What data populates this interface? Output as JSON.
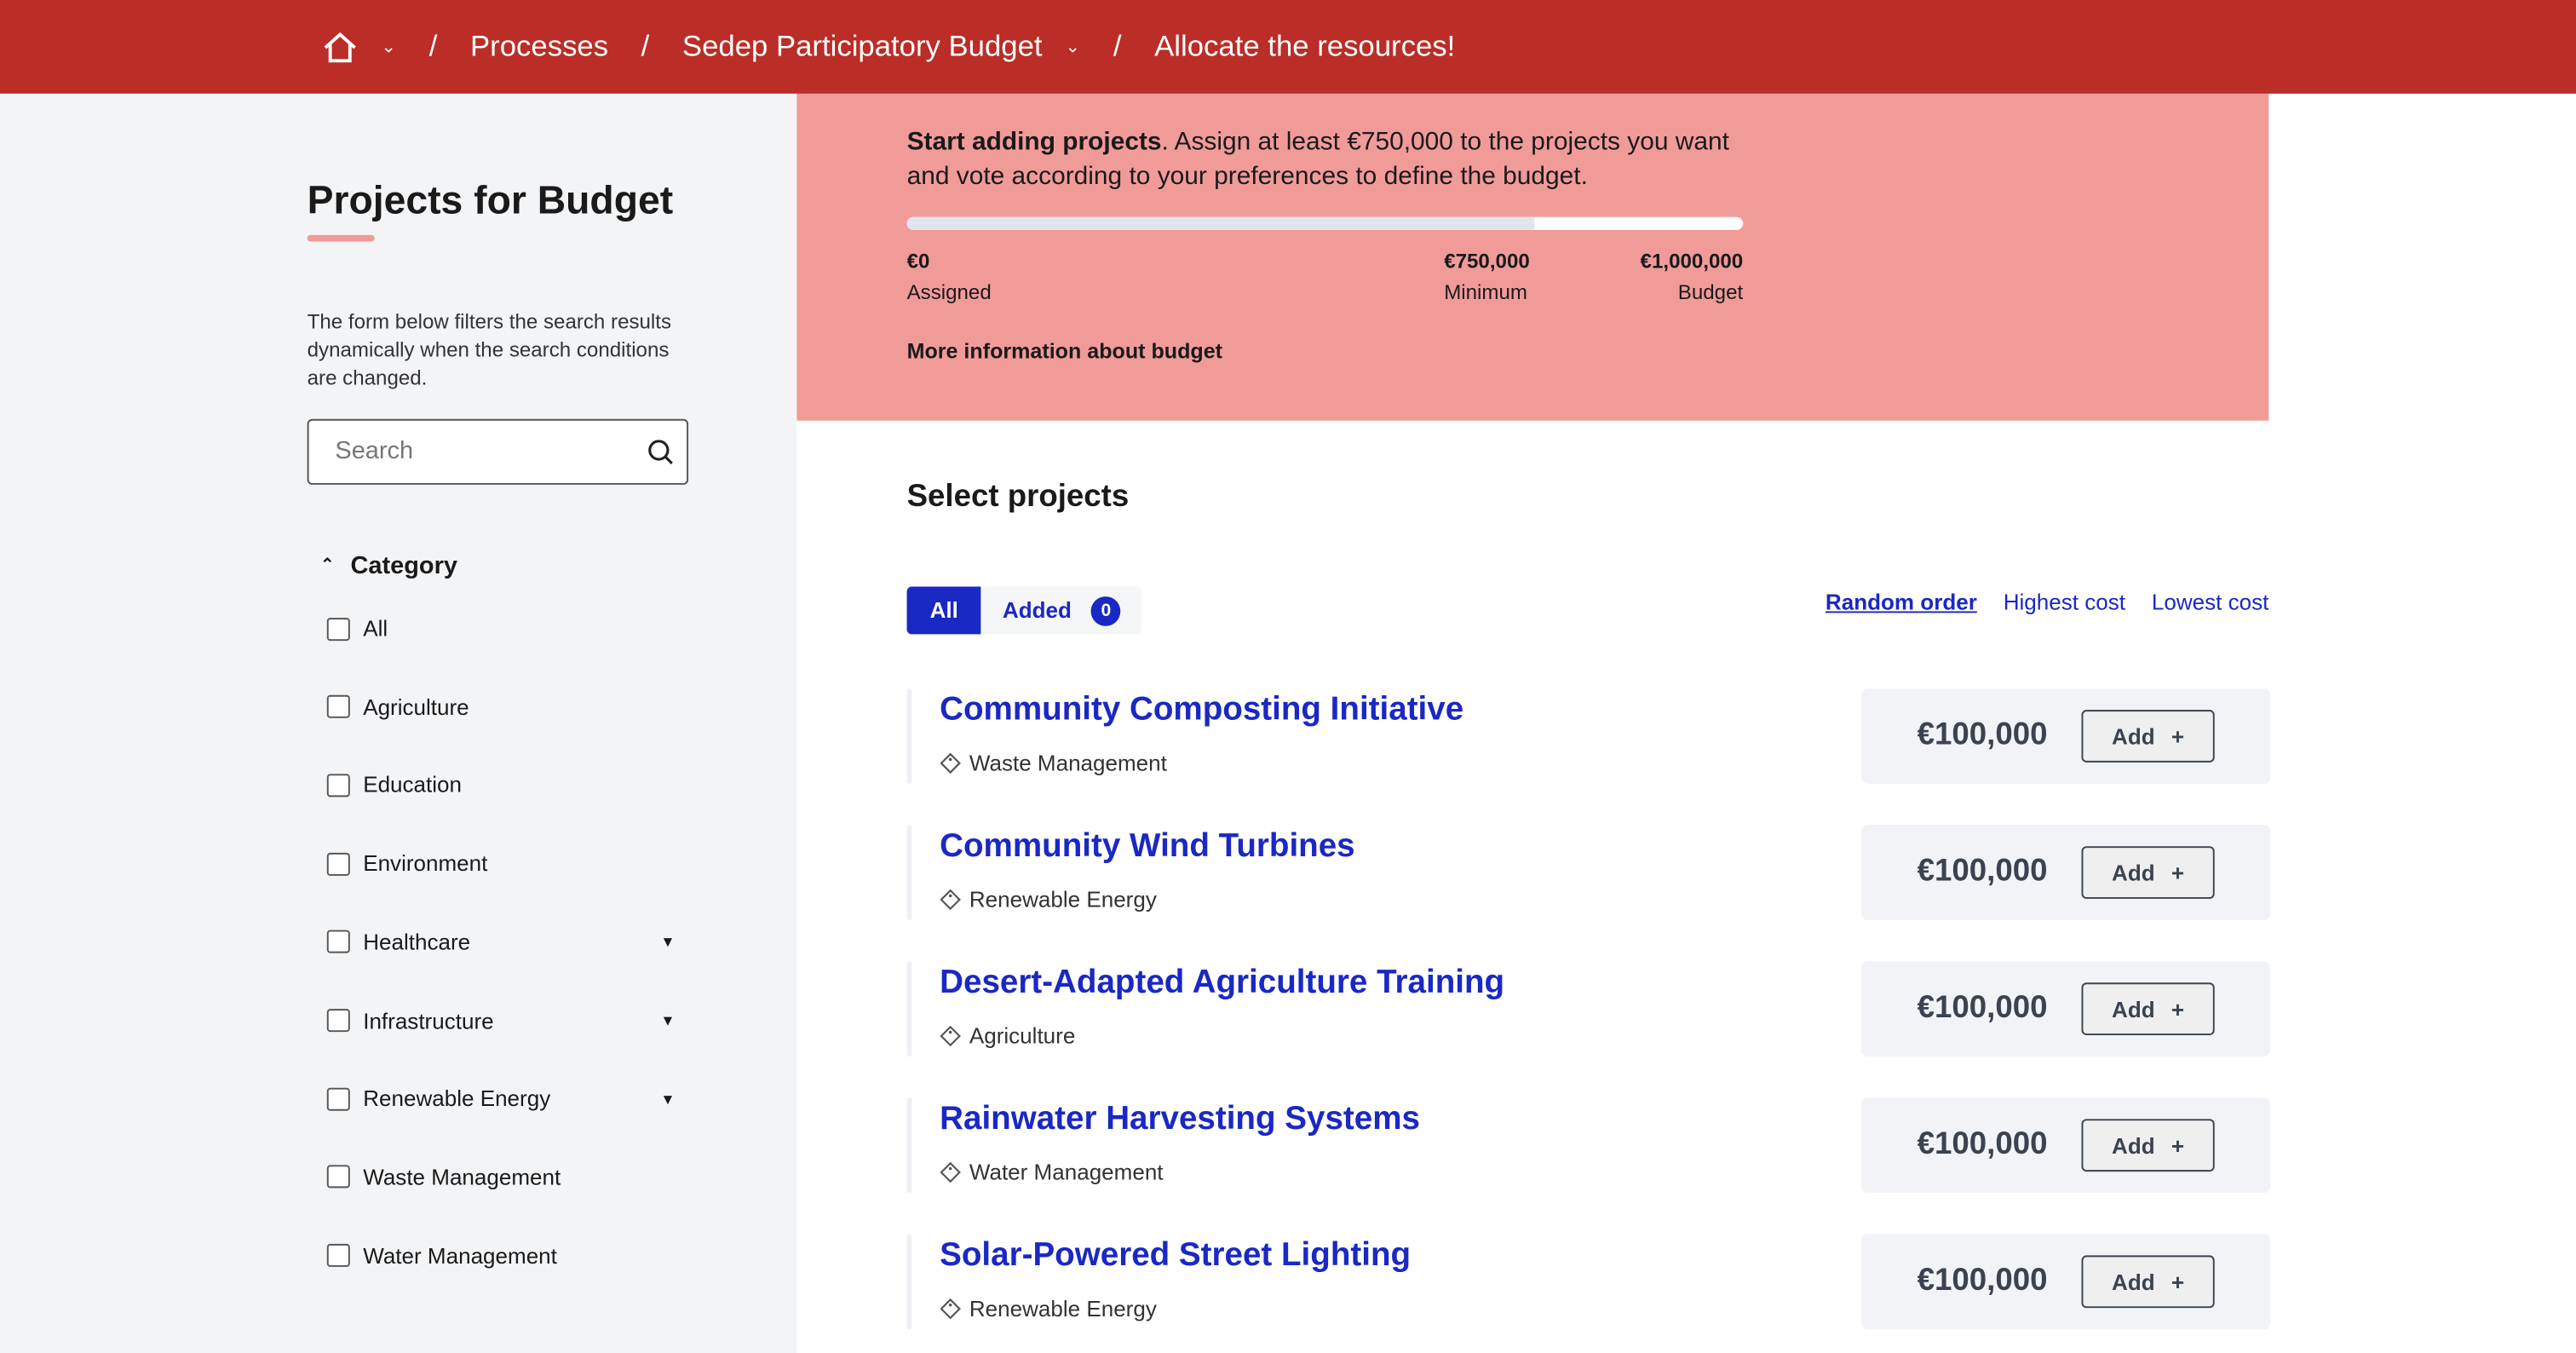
{
  "breadcrumb": {
    "processes": "Processes",
    "process": "Sedep Participatory Budget",
    "step": "Allocate the resources!"
  },
  "sidebar": {
    "title": "Projects for Budget",
    "description": "The form below filters the search results dynamically when the search conditions are changed.",
    "search_placeholder": "Search",
    "category_label": "Category",
    "categories": [
      {
        "label": "All"
      },
      {
        "label": "Agriculture"
      },
      {
        "label": "Education"
      },
      {
        "label": "Environment"
      },
      {
        "label": "Healthcare",
        "expandable": true
      },
      {
        "label": "Infrastructure",
        "expandable": true
      },
      {
        "label": "Renewable Energy",
        "expandable": true
      },
      {
        "label": "Waste Management"
      },
      {
        "label": "Water Management"
      }
    ]
  },
  "banner": {
    "bold": "Start adding projects",
    "text": ". Assign at least €750,000 to the projects you want and vote according to your preferences to define the budget.",
    "progress_percent": 75,
    "assigned_value": "€0",
    "assigned_label": "Assigned",
    "minimum_value": "€750,000",
    "minimum_label": "Minimum",
    "budget_value": "€1,000,000",
    "budget_label": "Budget",
    "more_info": "More information about budget"
  },
  "main": {
    "title": "Select projects",
    "filter_all": "All",
    "filter_added": "Added",
    "added_count": "0",
    "sort": [
      "Random order",
      "Highest cost",
      "Lowest cost"
    ],
    "add_label": "Add",
    "projects": [
      {
        "title": "Community Composting Initiative",
        "category": "Waste Management",
        "amount": "€100,000"
      },
      {
        "title": "Community Wind Turbines",
        "category": "Renewable Energy",
        "amount": "€100,000"
      },
      {
        "title": "Desert-Adapted Agriculture Training",
        "category": "Agriculture",
        "amount": "€100,000"
      },
      {
        "title": "Rainwater Harvesting Systems",
        "category": "Water Management",
        "amount": "€100,000"
      },
      {
        "title": "Solar-Powered Street Lighting",
        "category": "Renewable Energy",
        "amount": "€100,000"
      }
    ]
  },
  "colors": {
    "header": "#bb2d27",
    "banner": "#f19b99",
    "accent": "#1a28c4"
  }
}
